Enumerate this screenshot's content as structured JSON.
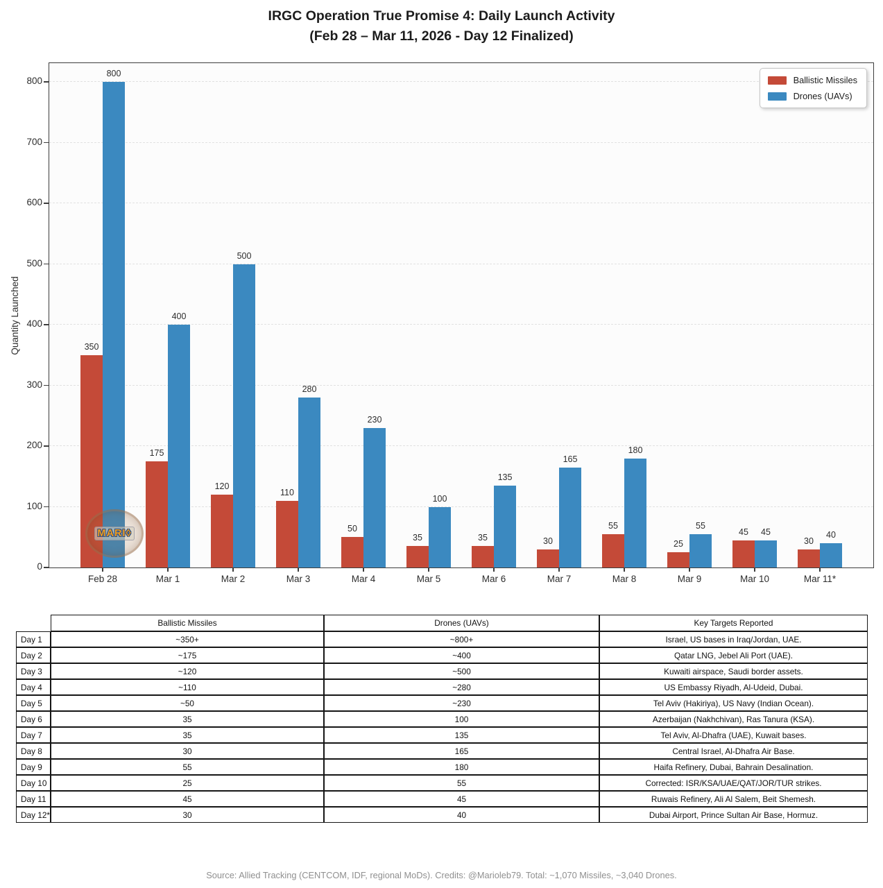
{
  "title": {
    "line1": "IRGC Operation True Promise 4: Daily Launch Activity",
    "line2": "(Feb 28 – Mar 11, 2026 - Day 12 Finalized)"
  },
  "chart_data": {
    "type": "bar",
    "title": "IRGC Operation True Promise 4: Daily Launch Activity (Feb 28 – Mar 11, 2026 - Day 12 Finalized)",
    "categories": [
      "Feb 28",
      "Mar 1",
      "Mar 2",
      "Mar 3",
      "Mar 4",
      "Mar 5",
      "Mar 6",
      "Mar 7",
      "Mar 8",
      "Mar 9",
      "Mar 10",
      "Mar 11*"
    ],
    "series": [
      {
        "name": "Ballistic Missiles",
        "color": "#c44a38",
        "values": [
          350,
          175,
          120,
          110,
          50,
          35,
          35,
          30,
          55,
          25,
          45,
          30
        ]
      },
      {
        "name": "Drones (UAVs)",
        "color": "#3b89c0",
        "values": [
          800,
          400,
          500,
          280,
          230,
          100,
          135,
          165,
          180,
          55,
          45,
          40
        ]
      }
    ],
    "xlabel": "",
    "ylabel": "Quantity Launched",
    "yticks": [
      0,
      100,
      200,
      300,
      400,
      500,
      600,
      700,
      800
    ],
    "ylim": [
      0,
      831
    ],
    "grid": "horizontal-dashed",
    "legend_position": "top-right",
    "bar_value_labels": true
  },
  "watermark": {
    "text": "MARIO",
    "display": "MARI◊"
  },
  "table": {
    "headers": [
      "",
      "Ballistic Missiles",
      "Drones (UAVs)",
      "Key Targets Reported"
    ],
    "rows": [
      {
        "label": "Day 1",
        "missiles": "~350+",
        "drones": "~800+",
        "targets": "Israel, US bases in Iraq/Jordan, UAE."
      },
      {
        "label": "Day 2",
        "missiles": "~175",
        "drones": "~400",
        "targets": "Qatar LNG, Jebel Ali Port (UAE)."
      },
      {
        "label": "Day 3",
        "missiles": "~120",
        "drones": "~500",
        "targets": "Kuwaiti airspace, Saudi border assets."
      },
      {
        "label": "Day 4",
        "missiles": "~110",
        "drones": "~280",
        "targets": "US Embassy Riyadh, Al-Udeid, Dubai."
      },
      {
        "label": "Day 5",
        "missiles": "~50",
        "drones": "~230",
        "targets": "Tel Aviv (Hakiriya), US Navy (Indian Ocean)."
      },
      {
        "label": "Day 6",
        "missiles": "35",
        "drones": "100",
        "targets": "Azerbaijan (Nakhchivan), Ras Tanura (KSA)."
      },
      {
        "label": "Day 7",
        "missiles": "35",
        "drones": "135",
        "targets": "Tel Aviv, Al-Dhafra (UAE), Kuwait bases."
      },
      {
        "label": "Day 8",
        "missiles": "30",
        "drones": "165",
        "targets": "Central Israel, Al-Dhafra Air Base."
      },
      {
        "label": "Day 9",
        "missiles": "55",
        "drones": "180",
        "targets": "Haifa Refinery, Dubai, Bahrain Desalination."
      },
      {
        "label": "Day 10",
        "missiles": "25",
        "drones": "55",
        "targets": "Corrected: ISR/KSA/UAE/QAT/JOR/TUR strikes."
      },
      {
        "label": "Day 11",
        "missiles": "45",
        "drones": "45",
        "targets": "Ruwais Refinery, Ali Al Salem, Beit Shemesh."
      },
      {
        "label": "Day 12*",
        "missiles": "30",
        "drones": "40",
        "targets": "Dubai Airport, Prince Sultan Air Base, Hormuz."
      }
    ]
  },
  "footer": "Source: Allied Tracking (CENTCOM, IDF, regional MoDs). Credits: @Marioleb79. Total: ~1,070 Missiles, ~3,040 Drones."
}
